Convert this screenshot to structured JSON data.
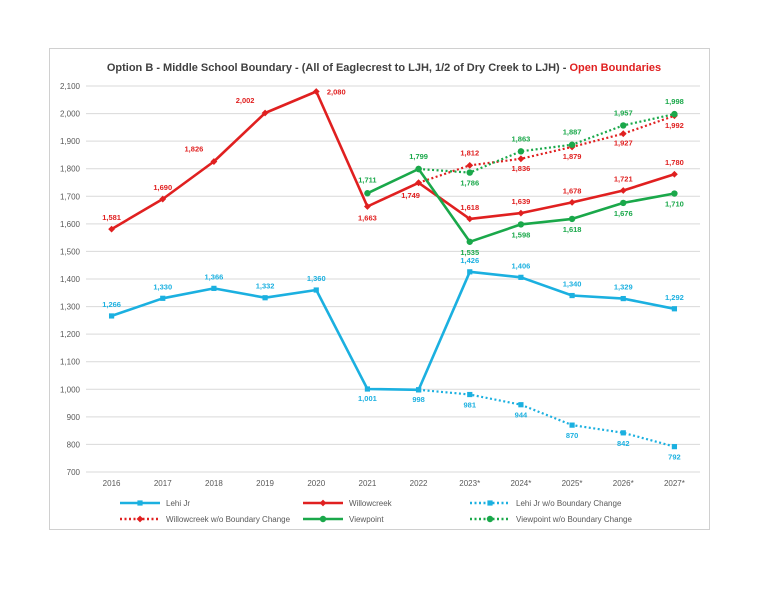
{
  "chart_data": {
    "type": "line",
    "title": "Option B - Middle School Boundary - (All of Eaglecrest to LJH, 1/2 of Dry Creek to LJH) - ",
    "title_highlight": "Open Boundaries",
    "categories": [
      "2016",
      "2017",
      "2018",
      "2019",
      "2020",
      "2021",
      "2022",
      "2023*",
      "2024*",
      "2025*",
      "2026*",
      "2027*"
    ],
    "ylim": [
      700,
      2100
    ],
    "yticks": [
      "700",
      "800",
      "900",
      "1,000",
      "1,100",
      "1,200",
      "1,300",
      "1,400",
      "1,500",
      "1,600",
      "1,700",
      "1,800",
      "1,900",
      "2,000",
      "2,100"
    ],
    "grid": true,
    "legend_position": "bottom",
    "series": [
      {
        "name": "Lehi Jr",
        "color": "#1bb0e0",
        "style": "solid",
        "marker": "square",
        "values": [
          1266,
          1330,
          1366,
          1332,
          1360,
          1001,
          998,
          1426,
          1406,
          1340,
          1329,
          1292
        ],
        "labels": [
          "1,266",
          "1,330",
          "1,366",
          "1,332",
          "1,360",
          "1,001",
          "998",
          "1,426",
          "1,406",
          "1,340",
          "1,329",
          "1,292"
        ]
      },
      {
        "name": "Willowcreek",
        "color": "#e02020",
        "style": "solid",
        "marker": "diamond",
        "values": [
          1581,
          1690,
          1826,
          2002,
          2080,
          1663,
          1749,
          1618,
          1639,
          1678,
          1721,
          1780
        ],
        "labels": [
          "1,581",
          "1,690",
          "1,826",
          "2,002",
          "2,080",
          "1,663",
          "1,749",
          "1,618",
          "1,639",
          "1,678",
          "1,721",
          "1,780"
        ]
      },
      {
        "name": "Lehi Jr w/o Boundary Change",
        "color": "#1bb0e0",
        "style": "dotted",
        "marker": "square",
        "values": [
          null,
          null,
          null,
          null,
          null,
          null,
          998,
          981,
          944,
          870,
          842,
          792
        ],
        "labels": [
          null,
          null,
          null,
          null,
          null,
          null,
          null,
          "981",
          "944",
          "870",
          "842",
          "792"
        ]
      },
      {
        "name": "Willowcreek w/o Boundary Change",
        "color": "#e02020",
        "style": "dotted",
        "marker": "diamond",
        "values": [
          null,
          null,
          null,
          null,
          null,
          null,
          1749,
          1812,
          1836,
          1879,
          1927,
          1992
        ],
        "labels": [
          null,
          null,
          null,
          null,
          null,
          null,
          null,
          "1,812",
          "1,836",
          "1,879",
          "1,927",
          "1,992"
        ]
      },
      {
        "name": "Viewpoint",
        "color": "#1aa84a",
        "style": "solid",
        "marker": "circle",
        "values": [
          null,
          null,
          null,
          null,
          null,
          1711,
          1799,
          1535,
          1598,
          1618,
          1676,
          1710
        ],
        "labels": [
          null,
          null,
          null,
          null,
          null,
          "1,711",
          "1,799",
          "1,535",
          "1,598",
          "1,618",
          "1,676",
          "1,710"
        ]
      },
      {
        "name": "Viewpoint w/o Boundary Change",
        "color": "#1aa84a",
        "style": "dotted",
        "marker": "circle",
        "values": [
          null,
          null,
          null,
          null,
          null,
          null,
          1799,
          1786,
          1863,
          1887,
          1957,
          1998
        ],
        "labels": [
          null,
          null,
          null,
          null,
          null,
          null,
          null,
          "1,786",
          "1,863",
          "1,887",
          "1,957",
          "1,998"
        ]
      }
    ]
  }
}
